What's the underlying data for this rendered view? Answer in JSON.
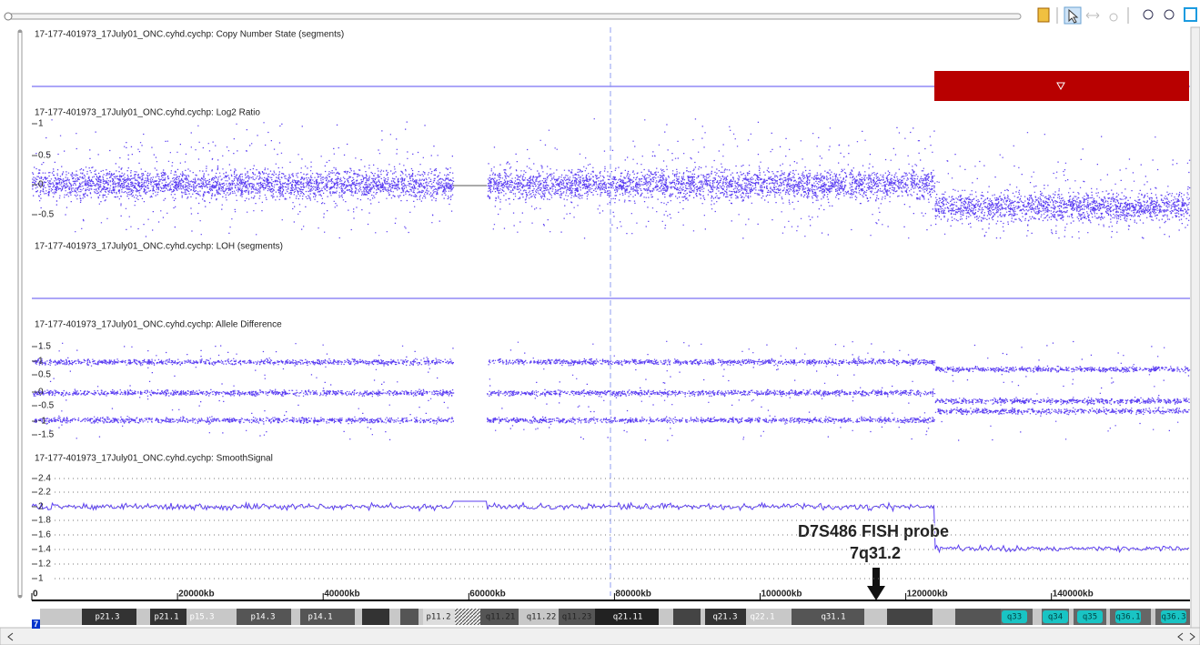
{
  "tracks": [
    {
      "title": "17-177-401973_17July01_ONC.cyhd.cychp: Copy Number State (segments)"
    },
    {
      "title": "17-177-401973_17July01_ONC.cyhd.cychp: Log2 Ratio",
      "ticks": [
        "1",
        "0.5",
        "0",
        "-0.5"
      ]
    },
    {
      "title": "17-177-401973_17July01_ONC.cyhd.cychp: LOH (segments)"
    },
    {
      "title": "17-177-401973_17July01_ONC.cyhd.cychp: Allele Difference",
      "ticks": [
        "1.5",
        "1",
        "0.5",
        "0",
        "-0.5",
        "-1",
        "-1.5"
      ]
    },
    {
      "title": "17-177-401973_17July01_ONC.cyhd.cychp: SmoothSignal",
      "ticks": [
        "2.4",
        "2.2",
        "2",
        "1.8",
        "1.6",
        "1.4",
        "1.2",
        "1"
      ]
    }
  ],
  "axis": {
    "ticks": [
      "0",
      "20000kb",
      "40000kb",
      "60000kb",
      "80000kb",
      "100000kb",
      "120000kb",
      "140000kb"
    ]
  },
  "annotation": {
    "lines": [
      "D7S486 FISH probe",
      "7q31.2"
    ]
  },
  "chromosome": {
    "number": "7",
    "bands": [
      "p21.3",
      "p21.1",
      "p15.3",
      "p14.3",
      "p14.1",
      "p11.2",
      "q11.21",
      "q11.22",
      "q11.23",
      "q21.11",
      "q21.3",
      "q22.1",
      "q31.1",
      "q33",
      "q34",
      "q35",
      "q36.1",
      "q36.3"
    ]
  }
}
